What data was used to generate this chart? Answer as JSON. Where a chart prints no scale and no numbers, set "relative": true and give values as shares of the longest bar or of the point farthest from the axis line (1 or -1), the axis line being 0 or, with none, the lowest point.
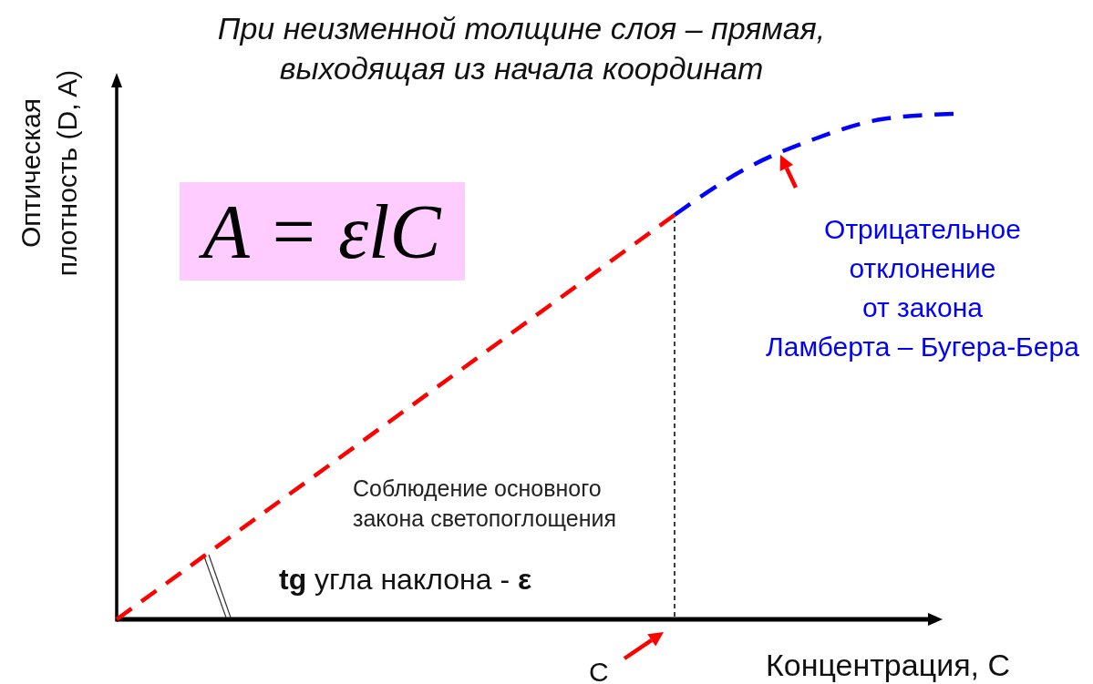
{
  "chart_data": {
    "type": "line",
    "title": "При неизменной толщине слоя – прямая,\nвыходящая из начала координат",
    "xlabel": "Концентрация, С",
    "ylabel": "Оптическая\nплотность (D, A)",
    "categories": [
      null,
      null,
      null,
      null,
      null,
      null,
      null,
      null,
      null,
      null,
      null,
      null,
      null
    ],
    "series": [
      {
        "color": "#ff0000",
        "values": [
          0,
          0.1,
          0.2,
          0.3,
          0.4,
          0.5,
          0.6,
          0.7,
          0.8,
          null,
          null,
          null,
          null
        ]
      },
      {
        "color": "#0000ff",
        "values": [
          null,
          null,
          null,
          null,
          null,
          null,
          null,
          null,
          0.8,
          0.89,
          0.95,
          0.99,
          1
        ]
      }
    ],
    "relative": true,
    "line_style": "dashed",
    "annotations": [
      "A = εlC",
      "Соблюдение основного\nзакона светопоглощения",
      "tg угла наклона - ε",
      "Отрицательное\nотклонение\nот закона\nЛамберта – Бугера-Бера",
      "C"
    ]
  }
}
